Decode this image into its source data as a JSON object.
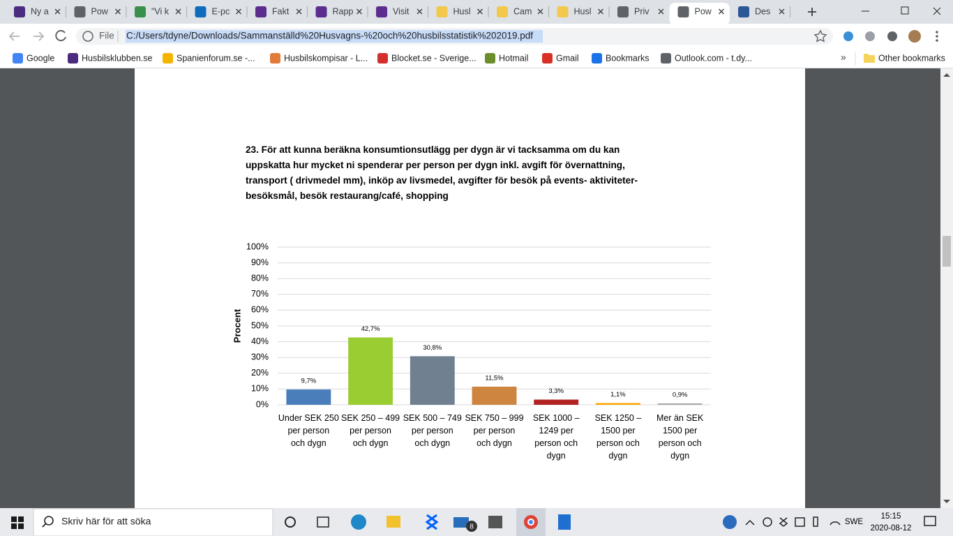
{
  "browser": {
    "tabs": [
      "Ny a",
      "Pow",
      "\"Vi k",
      "E-pc",
      "Fakt",
      "Rapp",
      "Visit",
      "Husl",
      "Cam",
      "Husl",
      "Priv",
      "Pow",
      "Des"
    ],
    "active_tab": 11,
    "address": {
      "scheme": "File",
      "url": "C:/Users/tdyne/Downloads/Sammanställd%20Husvagns-%20och%20husbilsstatistik%202019.pdf"
    },
    "bookmarks": [
      "Google",
      "Husbilsklubben.se",
      "Spanienforum.se -...",
      "Husbilskompisar - L...",
      "Blocket.se - Sverige...",
      "Hotmail",
      "Gmail",
      "Bookmarks",
      "Outlook.com - t.dy..."
    ],
    "overflow": "»",
    "other_bookmarks": "Other bookmarks"
  },
  "pdf": {
    "question": "23. För att kunna beräkna konsumtionsutlägg per dygn är vi tacksamma om du kan\nuppskatta hur mycket ni spenderar per person per dygn inkl. avgift för övernattning,\ntransport ( drivmedel mm), inköp av livsmedel, avgifter för besök på events- aktiviteter-\nbesöksmål, besök restaurang/café, shopping",
    "chart": {
      "type": "bar",
      "y_label": "Procent",
      "categories": [
        "Under SEK 250\nper person\noch dygn",
        "SEK 250 – 499\nper person\noch dygn",
        "SEK 500 – 749\nper person\noch dygn",
        "SEK 750 – 999\nper person\noch dygn",
        "SEK 1000 –\n1249 per\nperson och\ndygn",
        "SEK 1250 –\n1500 per\nperson och\ndygn",
        "Mer än SEK\n1500 per\nperson och\ndygn"
      ],
      "values": [
        9.7,
        42.7,
        30.8,
        11.5,
        3.3,
        1.1,
        0.9
      ],
      "value_labels": [
        "9,7%",
        "42,7%",
        "30,8%",
        "11,5%",
        "3,3%",
        "1,1%",
        "0,9%"
      ],
      "colors": [
        "#4a7ebb",
        "#9acd32",
        "#708090",
        "#cd853f",
        "#b22222",
        "#ffa500",
        "#a9a9a9"
      ],
      "ylim": [
        0,
        100
      ],
      "yticks": [
        {
          "value": 0,
          "label": "0%"
        },
        {
          "value": 10,
          "label": "10%"
        },
        {
          "value": 20,
          "label": "20%"
        },
        {
          "value": 30,
          "label": "30%"
        },
        {
          "value": 40,
          "label": "40%"
        },
        {
          "value": 50,
          "label": "50%"
        },
        {
          "value": 60,
          "label": "60%"
        },
        {
          "value": 70,
          "label": "70%"
        },
        {
          "value": 80,
          "label": "80%"
        },
        {
          "value": 90,
          "label": "90%"
        },
        {
          "value": 100,
          "label": "100%"
        }
      ],
      "grid": true
    }
  },
  "taskbar": {
    "search": "Skriv här för att söka",
    "mail_badge": 8,
    "language": "SWE",
    "time": "15:15",
    "date": "2020-08-12"
  }
}
